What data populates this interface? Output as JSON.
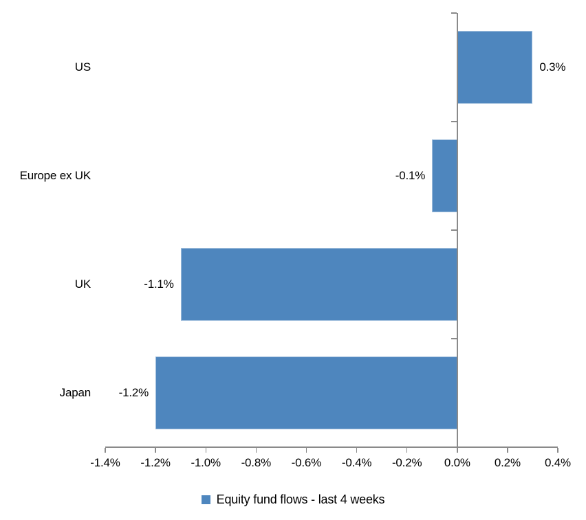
{
  "chart_data": {
    "type": "bar",
    "orientation": "horizontal",
    "title": "",
    "xlabel": "",
    "ylabel": "",
    "categories": [
      "US",
      "Europe ex UK",
      "UK",
      "Japan"
    ],
    "series": [
      {
        "name": "Equity fund flows - last 4 weeks",
        "values": [
          0.3,
          -0.1,
          -1.1,
          -1.2
        ],
        "value_labels": [
          "0.3%",
          "-0.1%",
          "-1.1%",
          "-1.2%"
        ]
      }
    ],
    "xlim": [
      -1.4,
      0.4
    ],
    "x_tick_values": [
      -1.4,
      -1.2,
      -1.0,
      -0.8,
      -0.6,
      -0.4,
      -0.2,
      0.0,
      0.2,
      0.4
    ],
    "x_tick_labels": [
      "-1.4%",
      "-1.2%",
      "-1.0%",
      "-0.8%",
      "-0.6%",
      "-0.4%",
      "-0.2%",
      "0.0%",
      "0.2%",
      "0.4%"
    ],
    "grid": false,
    "legend_position": "bottom",
    "colors": {
      "bar": "#4E86BE",
      "axis": "#8A8A8A",
      "text": "#000000",
      "background": "#FFFFFF"
    }
  }
}
